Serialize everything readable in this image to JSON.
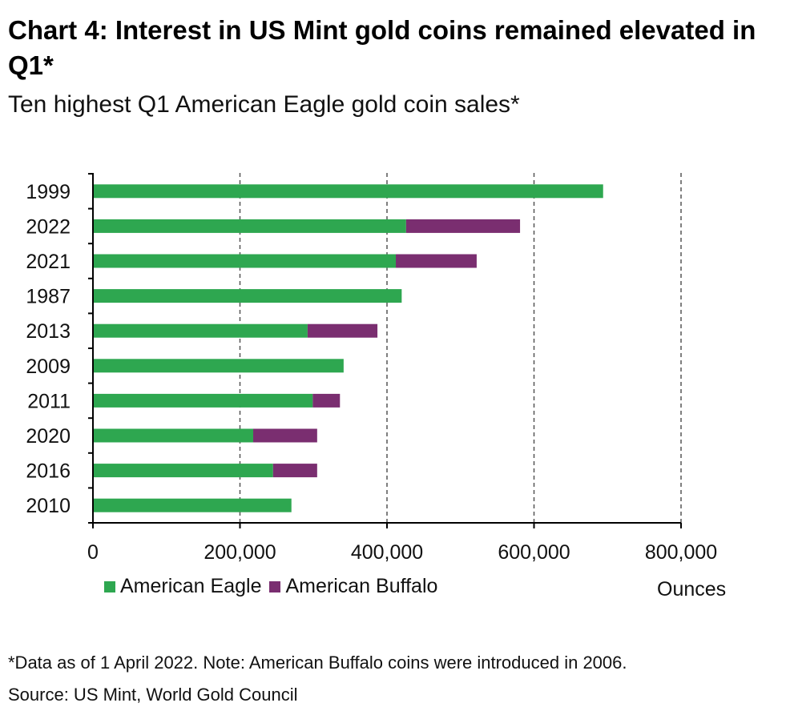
{
  "title": "Chart 4: Interest in US Mint gold coins remained elevated in Q1*",
  "subtitle": "Ten highest Q1 American Eagle gold coin sales*",
  "note": "*Data as of 1 April 2022. Note: American Buffalo coins were introduced in 2006.",
  "source": "Source: US Mint, World Gold Council",
  "colors": {
    "eagle": "#2ea750",
    "buffalo": "#7a2e70"
  },
  "chart_data": {
    "type": "bar",
    "orientation": "horizontal",
    "stacked": true,
    "categories": [
      "1999",
      "2022",
      "2021",
      "1987",
      "2013",
      "2009",
      "2011",
      "2020",
      "2016",
      "2010"
    ],
    "series": [
      {
        "name": "American Eagle",
        "values": [
          694000,
          426000,
          412000,
          420000,
          292000,
          341000,
          299000,
          218000,
          245000,
          270000
        ]
      },
      {
        "name": "American Buffalo",
        "values": [
          0,
          155000,
          110000,
          0,
          95000,
          0,
          37000,
          87000,
          60000,
          0
        ]
      }
    ],
    "xticks": [
      "0",
      "200,000",
      "400,000",
      "600,000",
      "800,000"
    ],
    "xlim": [
      0,
      800000
    ],
    "xlabel": "Ounces",
    "grid": "vertical dashed",
    "legend": "bottom-left"
  }
}
